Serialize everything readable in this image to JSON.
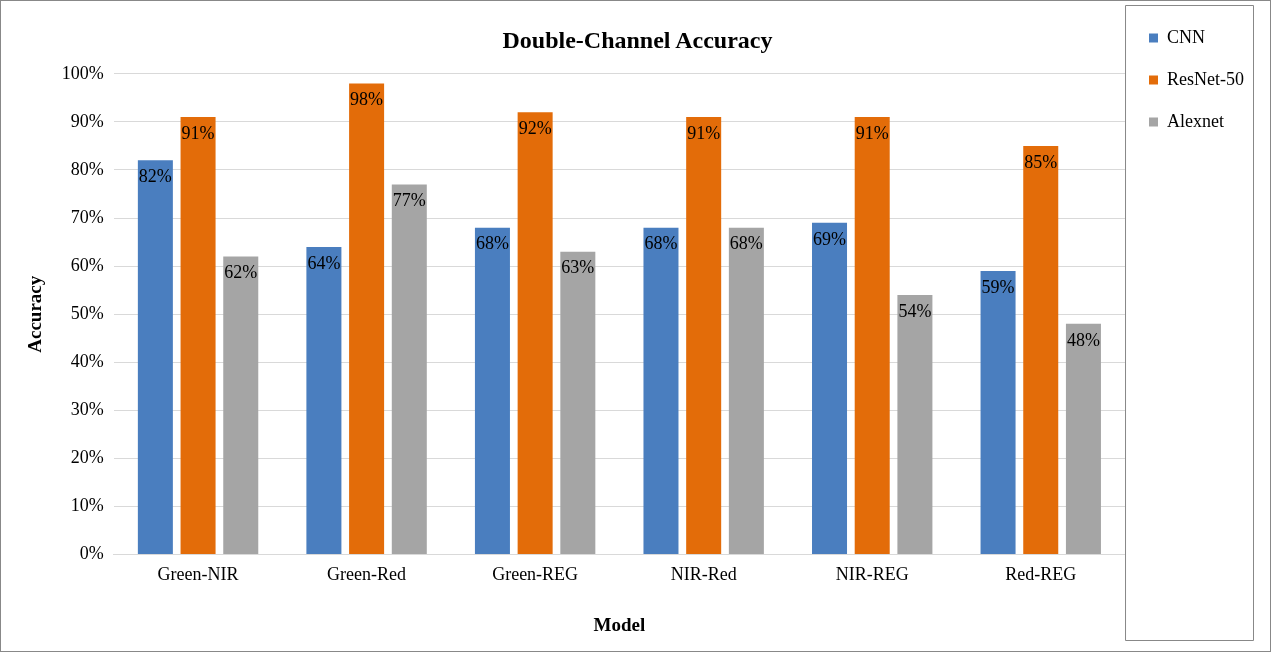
{
  "chart_data": {
    "type": "bar",
    "title": "Double-Channel Accuracy",
    "xlabel": "Model",
    "ylabel": "Accuracy",
    "categories": [
      "Green-NIR",
      "Green-Red",
      "Green-REG",
      "NIR-Red",
      "NIR-REG",
      "Red-REG"
    ],
    "series": [
      {
        "name": "CNN",
        "color": "#4a7ebf",
        "values": [
          82,
          64,
          68,
          68,
          69,
          59
        ],
        "value_labels": [
          "82%",
          "64%",
          "68%",
          "68%",
          "69%",
          "59%"
        ]
      },
      {
        "name": "ResNet-50",
        "color": "#e36c09",
        "values": [
          91,
          98,
          92,
          91,
          91,
          85
        ],
        "value_labels": [
          "91%",
          "98%",
          "92%",
          "91%",
          "91%",
          "85%"
        ]
      },
      {
        "name": "Alexnet",
        "color": "#a5a5a5",
        "values": [
          62,
          77,
          63,
          68,
          54,
          48
        ],
        "value_labels": [
          "62%",
          "77%",
          "63%",
          "68%",
          "54%",
          "48%"
        ]
      }
    ],
    "ylim": [
      0,
      100
    ],
    "yticks": [
      {
        "value": 0,
        "label": "0%"
      },
      {
        "value": 10,
        "label": "10%"
      },
      {
        "value": 20,
        "label": "20%"
      },
      {
        "value": 30,
        "label": "30%"
      },
      {
        "value": 40,
        "label": "40%"
      },
      {
        "value": 50,
        "label": "50%"
      },
      {
        "value": 60,
        "label": "60%"
      },
      {
        "value": 70,
        "label": "70%"
      },
      {
        "value": 80,
        "label": "80%"
      },
      {
        "value": 90,
        "label": "90%"
      },
      {
        "value": 100,
        "label": "100%"
      }
    ],
    "grid": "y",
    "legend": "top right"
  }
}
